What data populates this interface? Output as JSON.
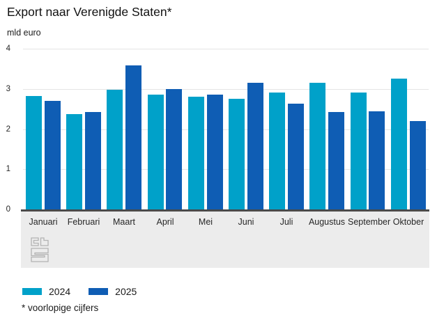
{
  "title": "Export naar Verenigde Staten*",
  "unit_label": "mld euro",
  "footnote": "* voorlopige cijfers",
  "colors": {
    "series_2024": "#00a1c9",
    "series_2025": "#0f5db4",
    "axis_line": "#4a4a4a",
    "gridline": "#e4e4e4",
    "x_band_background": "#ececec",
    "logo_gray": "#b3b3b3"
  },
  "chart_data": {
    "type": "bar",
    "title": "Export naar Verenigde Staten*",
    "xlabel": "",
    "ylabel": "mld euro",
    "ylim": [
      0,
      4
    ],
    "yticks": [
      0,
      1,
      2,
      3,
      4
    ],
    "grid": true,
    "legend_position": "bottom",
    "categories": [
      "Januari",
      "Februari",
      "Maart",
      "April",
      "Mei",
      "Juni",
      "Juli",
      "Augustus",
      "September",
      "Oktober"
    ],
    "series": [
      {
        "name": "2024",
        "color": "#00a1c9",
        "values": [
          2.83,
          2.37,
          2.98,
          2.85,
          2.8,
          2.75,
          2.91,
          3.15,
          2.91,
          3.25
        ]
      },
      {
        "name": "2025",
        "color": "#0f5db4",
        "values": [
          2.7,
          2.42,
          3.58,
          3.0,
          2.86,
          3.16,
          2.63,
          2.42,
          2.44,
          2.2
        ]
      }
    ]
  }
}
